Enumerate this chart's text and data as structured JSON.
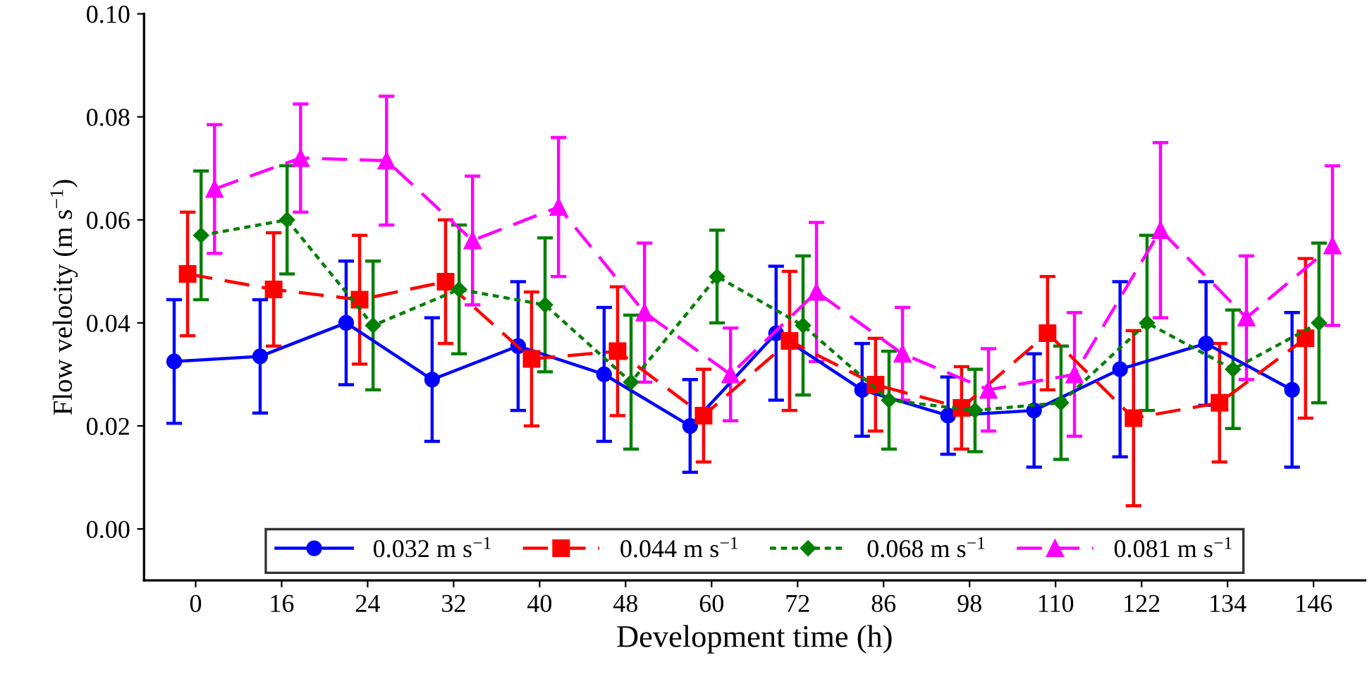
{
  "chart_data": {
    "type": "line",
    "xlabel": "Development time (h)",
    "ylabel": "Flow velocity (m s$^{−1}$)",
    "categories": [
      "0",
      "16",
      "24",
      "32",
      "40",
      "48",
      "60",
      "72",
      "86",
      "98",
      "110",
      "122",
      "134",
      "146"
    ],
    "ylim": [
      -0.01,
      0.1
    ],
    "yticks": [
      {
        "value": 0,
        "label": "0.00"
      },
      {
        "value": 0.02,
        "label": "0.02"
      },
      {
        "value": 0.04,
        "label": "0.04"
      },
      {
        "value": 0.06,
        "label": "0.06"
      },
      {
        "value": 0.08,
        "label": "0.08"
      },
      {
        "value": 0.1,
        "label": "0.10"
      }
    ],
    "grid": false,
    "legend": "bottom",
    "series": [
      {
        "name": "0.032 m s$^{−1}$",
        "color": "#0000ff",
        "marker": "circle",
        "line_style": "solid",
        "values": [
          0.0325,
          0.0335,
          0.04,
          0.029,
          0.0355,
          0.03,
          0.02,
          0.038,
          0.027,
          0.022,
          0.023,
          0.031,
          0.036,
          0.027
        ],
        "errors": [
          0.012,
          0.011,
          0.012,
          0.012,
          0.0125,
          0.013,
          0.009,
          0.013,
          0.009,
          0.0075,
          0.011,
          0.017,
          0.012,
          0.015
        ]
      },
      {
        "name": "0.044 m s$^{−1}$",
        "color": "#ff0000",
        "marker": "square",
        "line_style": "dashed",
        "values": [
          0.0495,
          0.0465,
          0.0445,
          0.048,
          0.033,
          0.0345,
          0.022,
          0.0365,
          0.028,
          0.0235,
          0.038,
          0.0215,
          0.0245,
          0.037
        ],
        "errors": [
          0.012,
          0.011,
          0.0125,
          0.012,
          0.013,
          0.0125,
          0.009,
          0.0135,
          0.009,
          0.008,
          0.011,
          0.017,
          0.0115,
          0.0155
        ]
      },
      {
        "name": "0.068 m s$^{−1}$",
        "color": "#008000",
        "marker": "diamond",
        "line_style": "dotted",
        "values": [
          0.057,
          0.06,
          0.0395,
          0.0465,
          0.0435,
          0.0285,
          0.049,
          0.0395,
          0.025,
          0.023,
          0.0245,
          0.04,
          0.031,
          0.04
        ],
        "errors": [
          0.0125,
          0.0105,
          0.0125,
          0.0125,
          0.013,
          0.013,
          0.009,
          0.0135,
          0.0095,
          0.008,
          0.011,
          0.017,
          0.0115,
          0.0155
        ]
      },
      {
        "name": "0.081 m s$^{−1}$",
        "color": "#ff00ff",
        "marker": "triangle",
        "line_style": "dashed",
        "values": [
          0.066,
          0.072,
          0.0715,
          0.056,
          0.0625,
          0.042,
          0.03,
          0.046,
          0.034,
          0.027,
          0.03,
          0.058,
          0.041,
          0.055
        ],
        "errors": [
          0.0125,
          0.0105,
          0.0125,
          0.0125,
          0.0135,
          0.0135,
          0.009,
          0.0135,
          0.009,
          0.008,
          0.012,
          0.017,
          0.012,
          0.0155
        ]
      }
    ]
  }
}
